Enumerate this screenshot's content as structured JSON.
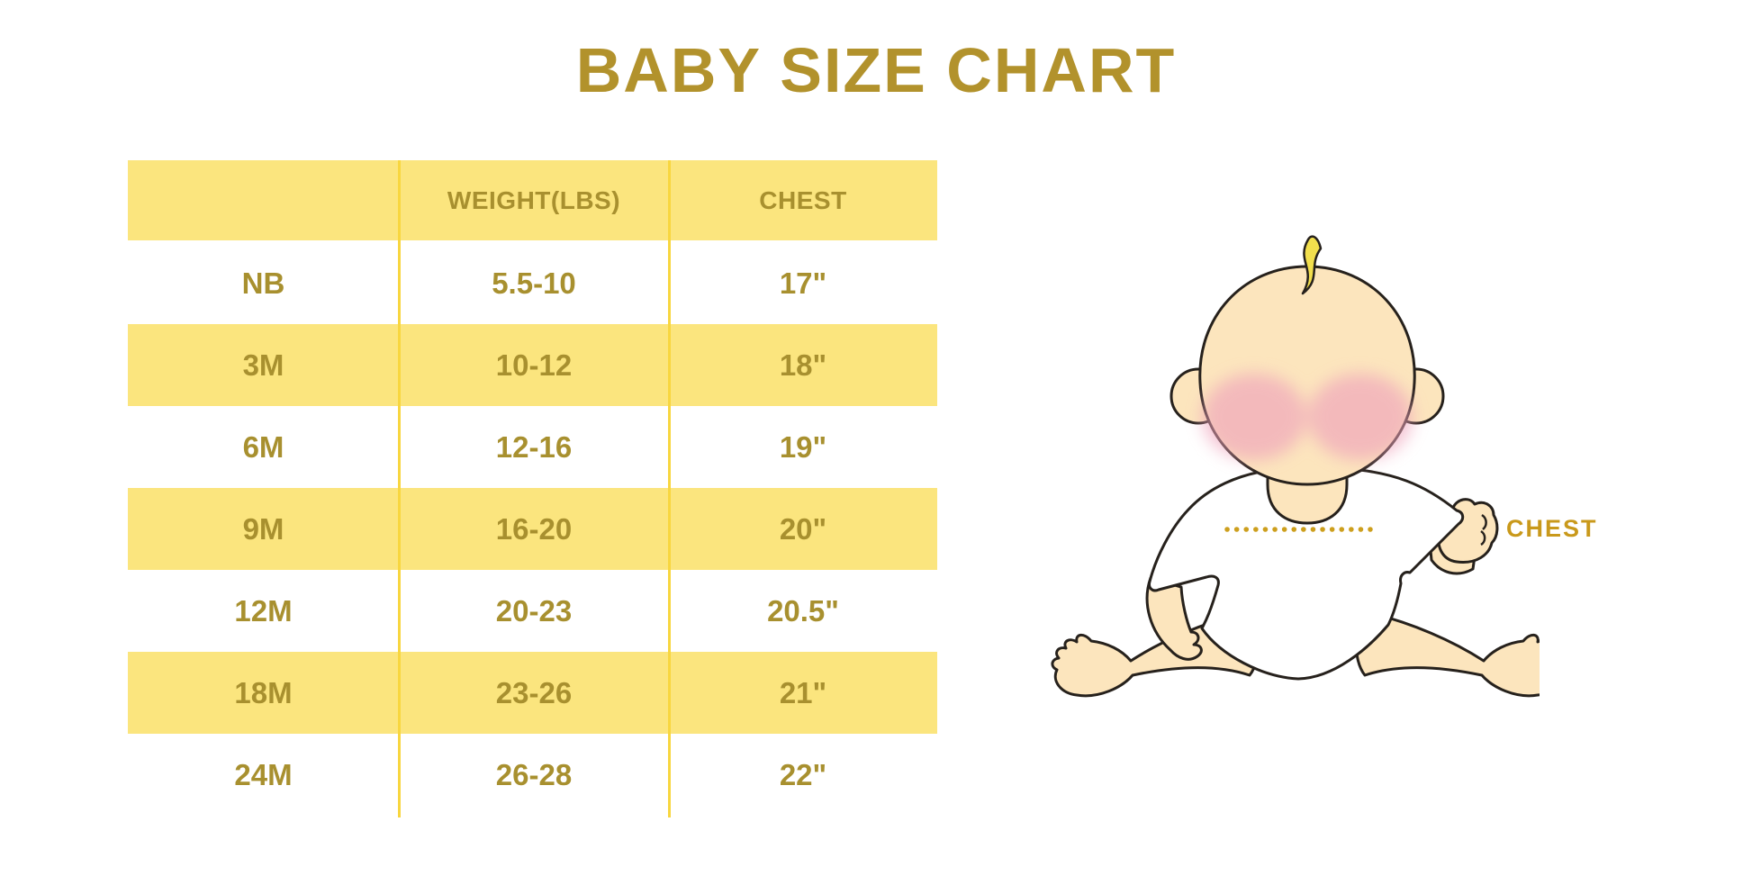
{
  "page": {
    "title": "BABY SIZE CHART"
  },
  "chart_data": {
    "type": "table",
    "title": "BABY SIZE CHART",
    "columns": [
      "",
      "WEIGHT(LBS)",
      "CHEST"
    ],
    "rows": [
      [
        "NB",
        "5.5-10",
        "17\""
      ],
      [
        "3M",
        "10-12",
        "18\""
      ],
      [
        "6M",
        "12-16",
        "19\""
      ],
      [
        "9M",
        "16-20",
        "20\""
      ],
      [
        "12M",
        "20-23",
        "20.5\""
      ],
      [
        "18M",
        "23-26",
        "21\""
      ],
      [
        "24M",
        "26-28",
        "22\""
      ]
    ],
    "layout": {
      "striped_rows": "header and alternating data rows are yellow",
      "grid": "two vertical yellow column dividers, no horizontal borders"
    }
  },
  "illustration": {
    "description": "cartoon seated baby in white onesie with dotted measuring line across chest",
    "chest_label": "CHEST"
  },
  "colors": {
    "title_gold": "#B2922C",
    "table_text_gold": "#A8902F",
    "row_yellow": "#FBE57E",
    "divider_yellow": "#F8D63F",
    "chest_label_gold": "#C9991B",
    "dotted_line_gold": "#CD9F1D",
    "baby_skin": "#FCE5BD",
    "baby_blush": "#EFA3BB",
    "baby_hair": "#F2DF4D",
    "baby_outline": "#26211C"
  }
}
